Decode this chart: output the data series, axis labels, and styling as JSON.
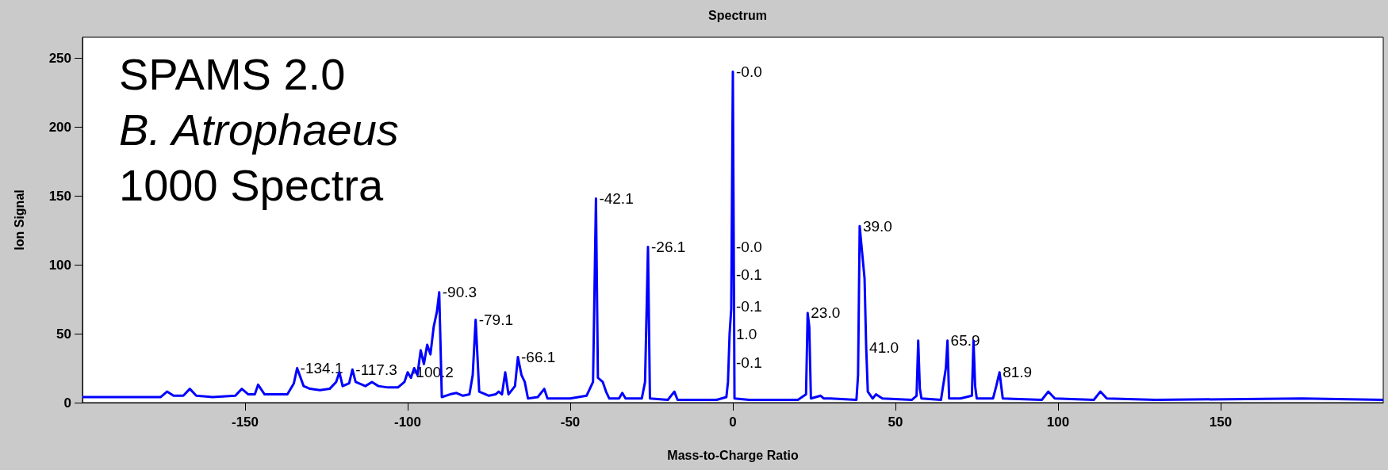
{
  "chart_data": {
    "type": "line",
    "title": "Spectrum",
    "xlabel": "Mass-to-Charge Ratio",
    "ylabel": "Ion Signal",
    "x": [
      -200,
      -190,
      -180,
      -176,
      -174,
      -172,
      -169,
      -167,
      -165,
      -160,
      -153,
      -151,
      -149,
      -147,
      -146,
      -144,
      -137,
      -135,
      -134,
      -132,
      -130,
      -127,
      -124,
      -122,
      -121,
      -120,
      -119,
      -118,
      -117,
      -116,
      -115,
      -113,
      -111,
      -109,
      -106,
      -103,
      -101,
      -100,
      -99,
      -98,
      -97,
      -96,
      -95,
      -94,
      -93,
      -92,
      -91,
      -90.3,
      -89.5,
      -87,
      -85,
      -83,
      -81,
      -80,
      -79.1,
      -78,
      -75,
      -73,
      -72,
      -71,
      -70,
      -69,
      -67,
      -66.1,
      -65,
      -64,
      -63,
      -60,
      -58,
      -57,
      -50,
      -45,
      -43,
      -42.1,
      -41.5,
      -40,
      -39,
      -38,
      -35,
      -34,
      -33,
      -28,
      -27,
      -26.1,
      -25.5,
      -20,
      -18,
      -17,
      -5,
      -2,
      -1.5,
      -1,
      -0.5,
      0,
      0.5,
      5,
      20,
      22.5,
      23,
      23.5,
      24,
      27,
      28,
      30,
      38,
      38.5,
      39,
      39.7,
      40.5,
      41,
      41.5,
      43,
      44,
      46,
      55,
      56.5,
      57,
      57.5,
      58,
      64,
      65.5,
      66,
      66.5,
      70,
      73.5,
      74,
      74.5,
      75,
      80,
      81,
      82,
      83,
      95,
      97,
      99,
      111,
      113,
      115,
      130,
      175,
      200
    ],
    "values": [
      4,
      4,
      4,
      4,
      8,
      5,
      5,
      10,
      5,
      4,
      5,
      10,
      6,
      6,
      13,
      6,
      6,
      14,
      25,
      12,
      10,
      9,
      10,
      15,
      22,
      12,
      13,
      14,
      24,
      15,
      14,
      12,
      15,
      12,
      11,
      11,
      15,
      22,
      18,
      25,
      20,
      38,
      28,
      42,
      35,
      55,
      66,
      80,
      4,
      6,
      7,
      5,
      6,
      20,
      60,
      8,
      5,
      6,
      8,
      6,
      22,
      6,
      12,
      33,
      20,
      15,
      3,
      4,
      10,
      3,
      3,
      5,
      15,
      148,
      18,
      15,
      8,
      3,
      3,
      7,
      3,
      3,
      15,
      113,
      3,
      2,
      8,
      2,
      2,
      4,
      15,
      50,
      68,
      240,
      3,
      2,
      2,
      6,
      65,
      55,
      3,
      5,
      3,
      3,
      2,
      20,
      128,
      110,
      90,
      40,
      8,
      3,
      6,
      3,
      2,
      5,
      45,
      10,
      3,
      2,
      25,
      45,
      3,
      3,
      5,
      45,
      12,
      3,
      3,
      12,
      22,
      3,
      2,
      8,
      3,
      2,
      8,
      3,
      2,
      3,
      2
    ],
    "color": "#0000ff",
    "xlim": [
      -200,
      200
    ],
    "xticks": [
      -150,
      -100,
      -50,
      0,
      50,
      100,
      150
    ],
    "ylim": [
      0,
      265
    ],
    "yticks": [
      0,
      50,
      100,
      150,
      200,
      250
    ],
    "grid": false,
    "marker": "none",
    "line_style": "solid",
    "annotations": [
      "SPAMS 2.0",
      "B. Atrophaeus",
      "1000 Spectra",
      {
        "text": "-134.1",
        "x": -134,
        "y": 25
      },
      {
        "text": "-117.3",
        "x": -117,
        "y": 24
      },
      {
        "text": "-100.2",
        "x": -100,
        "y": 22
      },
      {
        "text": "-90.3",
        "x": -90.3,
        "y": 80
      },
      {
        "text": "-79.1",
        "x": -79.1,
        "y": 60
      },
      {
        "text": "-66.1",
        "x": -66.1,
        "y": 33
      },
      {
        "text": "-42.1",
        "x": -42.1,
        "y": 148
      },
      {
        "text": "-26.1",
        "x": -26.1,
        "y": 113
      },
      {
        "text": "-0.0",
        "x": 0,
        "y": 240
      },
      {
        "text": "-0.0",
        "x": 0,
        "y": 113
      },
      {
        "text": "-0.1",
        "x": 0,
        "y": 93
      },
      {
        "text": "-0.1",
        "x": 0,
        "y": 70
      },
      {
        "text": "1.0",
        "x": 0,
        "y": 50
      },
      {
        "text": "-0.1",
        "x": 0,
        "y": 29
      },
      {
        "text": "23.0",
        "x": 23,
        "y": 65
      },
      {
        "text": "39.0",
        "x": 39,
        "y": 128
      },
      {
        "text": "41.0",
        "x": 41,
        "y": 40
      },
      {
        "text": "65.9",
        "x": 66,
        "y": 45
      },
      {
        "text": "81.9",
        "x": 82,
        "y": 22
      }
    ]
  }
}
